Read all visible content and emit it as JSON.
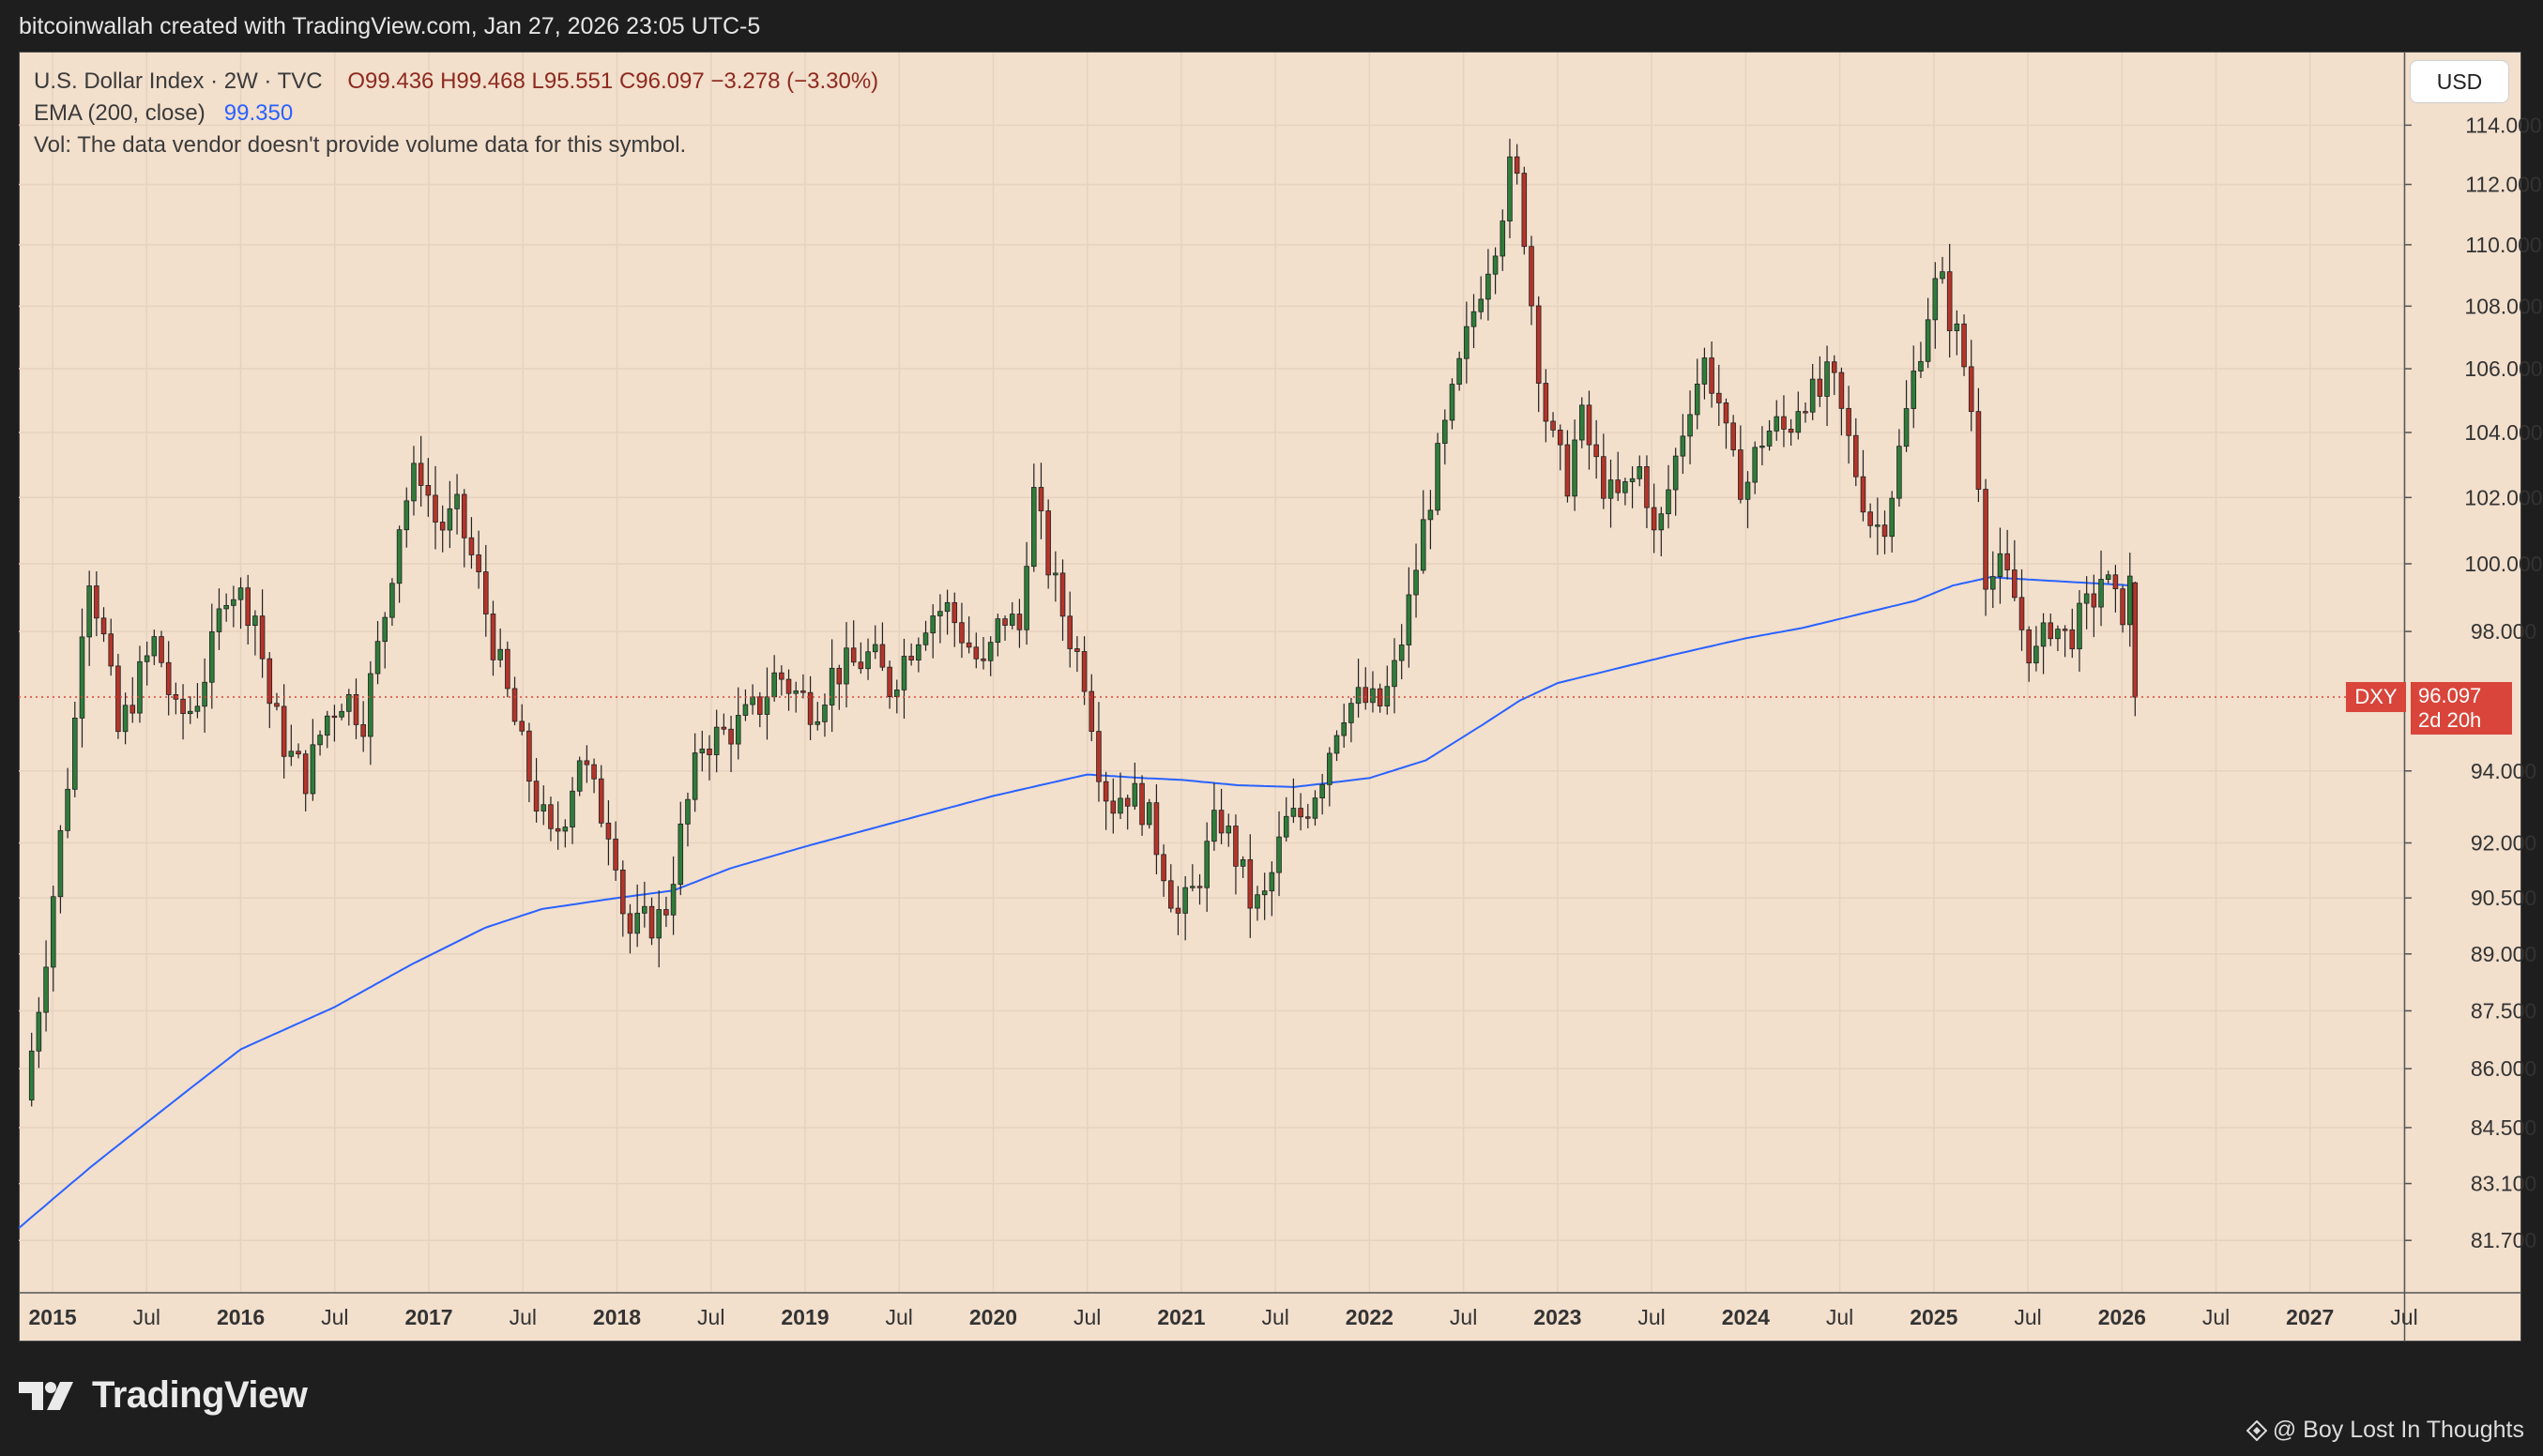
{
  "caption": "bitcoinwallah created with TradingView.com, Jan 27, 2026 23:05 UTC-5",
  "legend": {
    "line1_prefix": "U.S. Dollar Index · 2W · TVC",
    "open": "O99.436",
    "high": "H99.468",
    "low": "L95.551",
    "close": "C96.097",
    "change": "−3.278 (−3.30%)",
    "ema_label": "EMA (200, close)",
    "ema_value": "99.350",
    "volume_note": "Vol: The data vendor doesn't provide volume data for this symbol."
  },
  "currency_button": "USD",
  "last_price": {
    "symbol": "DXY",
    "value": "96.097",
    "countdown": "2d 20h"
  },
  "brand": "TradingView",
  "credit": "@ Boy Lost In Thoughts",
  "colors": {
    "up": "#2e7d3a",
    "down": "#b5342a",
    "ema": "#2962ff",
    "background": "#f2dfcc"
  },
  "chart_data": {
    "type": "candlestick",
    "symbol": "U.S. Dollar Index",
    "interval": "2W",
    "y_scale": "log",
    "ylim": [
      80.5,
      116.5
    ],
    "xlim": [
      2014.82,
      2027.5
    ],
    "y_ticks": [
      "114.000",
      "112.000",
      "110.000",
      "108.000",
      "106.000",
      "104.000",
      "102.000",
      "100.000",
      "98.000",
      "94.000",
      "92.000",
      "90.500",
      "89.000",
      "87.500",
      "86.000",
      "84.500",
      "83.100",
      "81.700"
    ],
    "x_ticks": [
      {
        "label": "2015",
        "t": 2015.0
      },
      {
        "label": "Jul",
        "t": 2015.5
      },
      {
        "label": "2016",
        "t": 2016.0
      },
      {
        "label": "Jul",
        "t": 2016.5
      },
      {
        "label": "2017",
        "t": 2017.0
      },
      {
        "label": "Jul",
        "t": 2017.5
      },
      {
        "label": "2018",
        "t": 2018.0
      },
      {
        "label": "Jul",
        "t": 2018.5
      },
      {
        "label": "2019",
        "t": 2019.0
      },
      {
        "label": "Jul",
        "t": 2019.5
      },
      {
        "label": "2020",
        "t": 2020.0
      },
      {
        "label": "Jul",
        "t": 2020.5
      },
      {
        "label": "2021",
        "t": 2021.0
      },
      {
        "label": "Jul",
        "t": 2021.5
      },
      {
        "label": "2022",
        "t": 2022.0
      },
      {
        "label": "Jul",
        "t": 2022.5
      },
      {
        "label": "2023",
        "t": 2023.0
      },
      {
        "label": "Jul",
        "t": 2023.5
      },
      {
        "label": "2024",
        "t": 2024.0
      },
      {
        "label": "Jul",
        "t": 2024.5
      },
      {
        "label": "2025",
        "t": 2025.0
      },
      {
        "label": "Jul",
        "t": 2025.5
      },
      {
        "label": "2026",
        "t": 2026.0
      },
      {
        "label": "Jul",
        "t": 2026.5
      },
      {
        "label": "2027",
        "t": 2027.0
      },
      {
        "label": "Jul",
        "t": 2027.5
      }
    ],
    "price_path": [
      [
        2014.85,
        85.2
      ],
      [
        2014.95,
        88.5
      ],
      [
        2015.05,
        92.5
      ],
      [
        2015.12,
        95.5
      ],
      [
        2015.18,
        100.2
      ],
      [
        2015.28,
        97.5
      ],
      [
        2015.35,
        95.0
      ],
      [
        2015.45,
        96.5
      ],
      [
        2015.55,
        97.8
      ],
      [
        2015.65,
        95.5
      ],
      [
        2015.75,
        95.8
      ],
      [
        2015.85,
        97.5
      ],
      [
        2015.93,
        99.5
      ],
      [
        2016.0,
        99.0
      ],
      [
        2016.08,
        98.5
      ],
      [
        2016.15,
        96.0
      ],
      [
        2016.25,
        94.5
      ],
      [
        2016.35,
        93.8
      ],
      [
        2016.45,
        95.5
      ],
      [
        2016.55,
        96.2
      ],
      [
        2016.65,
        95.5
      ],
      [
        2016.75,
        98.0
      ],
      [
        2016.85,
        101.5
      ],
      [
        2016.95,
        103.0
      ],
      [
        2017.05,
        101.0
      ],
      [
        2017.15,
        101.5
      ],
      [
        2017.25,
        99.8
      ],
      [
        2017.35,
        97.5
      ],
      [
        2017.45,
        95.5
      ],
      [
        2017.55,
        93.5
      ],
      [
        2017.65,
        92.0
      ],
      [
        2017.72,
        92.8
      ],
      [
        2017.8,
        94.5
      ],
      [
        2017.9,
        93.0
      ],
      [
        2017.98,
        92.3
      ],
      [
        2018.05,
        89.5
      ],
      [
        2018.15,
        89.8
      ],
      [
        2018.25,
        90.0
      ],
      [
        2018.35,
        92.5
      ],
      [
        2018.45,
        94.8
      ],
      [
        2018.55,
        95.0
      ],
      [
        2018.65,
        95.3
      ],
      [
        2018.75,
        95.8
      ],
      [
        2018.85,
        96.8
      ],
      [
        2018.95,
        96.2
      ],
      [
        2019.05,
        95.8
      ],
      [
        2019.15,
        96.8
      ],
      [
        2019.25,
        97.0
      ],
      [
        2019.35,
        97.3
      ],
      [
        2019.45,
        96.4
      ],
      [
        2019.55,
        97.5
      ],
      [
        2019.65,
        98.5
      ],
      [
        2019.75,
        98.7
      ],
      [
        2019.85,
        97.8
      ],
      [
        2019.95,
        96.8
      ],
      [
        2020.05,
        98.5
      ],
      [
        2020.15,
        98.0
      ],
      [
        2020.2,
        102.5
      ],
      [
        2020.3,
        99.8
      ],
      [
        2020.4,
        98.0
      ],
      [
        2020.5,
        96.5
      ],
      [
        2020.55,
        94.5
      ],
      [
        2020.62,
        93.0
      ],
      [
        2020.7,
        93.5
      ],
      [
        2020.8,
        93.0
      ],
      [
        2020.9,
        91.5
      ],
      [
        2020.98,
        90.0
      ],
      [
        2021.05,
        90.5
      ],
      [
        2021.12,
        91.5
      ],
      [
        2021.2,
        92.8
      ],
      [
        2021.3,
        91.5
      ],
      [
        2021.38,
        90.2
      ],
      [
        2021.45,
        90.5
      ],
      [
        2021.55,
        92.5
      ],
      [
        2021.65,
        92.8
      ],
      [
        2021.75,
        94.0
      ],
      [
        2021.85,
        95.8
      ],
      [
        2021.95,
        96.0
      ],
      [
        2022.05,
        95.8
      ],
      [
        2022.12,
        96.5
      ],
      [
        2022.2,
        98.5
      ],
      [
        2022.3,
        101.5
      ],
      [
        2022.4,
        104.0
      ],
      [
        2022.5,
        106.5
      ],
      [
        2022.58,
        108.5
      ],
      [
        2022.68,
        110.5
      ],
      [
        2022.75,
        112.5
      ],
      [
        2022.8,
        111.8
      ],
      [
        2022.88,
        107.0
      ],
      [
        2022.95,
        104.0
      ],
      [
        2023.05,
        102.5
      ],
      [
        2023.12,
        104.5
      ],
      [
        2023.2,
        103.0
      ],
      [
        2023.3,
        101.8
      ],
      [
        2023.38,
        102.3
      ],
      [
        2023.45,
        103.0
      ],
      [
        2023.52,
        100.5
      ],
      [
        2023.6,
        102.5
      ],
      [
        2023.7,
        105.0
      ],
      [
        2023.78,
        106.2
      ],
      [
        2023.85,
        105.2
      ],
      [
        2023.92,
        103.0
      ],
      [
        2024.0,
        102.3
      ],
      [
        2024.08,
        103.8
      ],
      [
        2024.15,
        104.2
      ],
      [
        2024.22,
        104.0
      ],
      [
        2024.3,
        105.3
      ],
      [
        2024.38,
        105.0
      ],
      [
        2024.45,
        105.8
      ],
      [
        2024.52,
        104.3
      ],
      [
        2024.6,
        102.5
      ],
      [
        2024.68,
        101.0
      ],
      [
        2024.75,
        101.5
      ],
      [
        2024.82,
        103.5
      ],
      [
        2024.9,
        106.0
      ],
      [
        2024.97,
        107.9
      ],
      [
        2025.03,
        109.0
      ],
      [
        2025.08,
        107.8
      ],
      [
        2025.15,
        106.5
      ],
      [
        2025.22,
        104.0
      ],
      [
        2025.28,
        99.5
      ],
      [
        2025.35,
        99.8
      ],
      [
        2025.42,
        99.2
      ],
      [
        2025.48,
        97.8
      ],
      [
        2025.55,
        97.2
      ],
      [
        2025.62,
        98.3
      ],
      [
        2025.7,
        97.8
      ],
      [
        2025.78,
        98.3
      ],
      [
        2025.85,
        99.0
      ],
      [
        2025.9,
        99.8
      ],
      [
        2025.95,
        98.8
      ],
      [
        2026.0,
        98.6
      ],
      [
        2026.05,
        99.44
      ],
      [
        2026.07,
        96.1
      ]
    ],
    "ema": {
      "name": "EMA (200, close)",
      "points": [
        [
          2014.82,
          82.0
        ],
        [
          2015.2,
          83.5
        ],
        [
          2015.6,
          85.0
        ],
        [
          2016.0,
          86.5
        ],
        [
          2016.5,
          87.6
        ],
        [
          2016.9,
          88.7
        ],
        [
          2017.3,
          89.7
        ],
        [
          2017.6,
          90.2
        ],
        [
          2018.0,
          90.5
        ],
        [
          2018.3,
          90.7
        ],
        [
          2018.6,
          91.3
        ],
        [
          2019.0,
          91.9
        ],
        [
          2019.5,
          92.6
        ],
        [
          2020.0,
          93.3
        ],
        [
          2020.5,
          93.9
        ],
        [
          2020.8,
          93.8
        ],
        [
          2021.0,
          93.75
        ],
        [
          2021.3,
          93.6
        ],
        [
          2021.6,
          93.55
        ],
        [
          2022.0,
          93.8
        ],
        [
          2022.3,
          94.3
        ],
        [
          2022.6,
          95.3
        ],
        [
          2022.8,
          96.0
        ],
        [
          2023.0,
          96.5
        ],
        [
          2023.3,
          96.9
        ],
        [
          2023.6,
          97.3
        ],
        [
          2024.0,
          97.8
        ],
        [
          2024.3,
          98.1
        ],
        [
          2024.6,
          98.5
        ],
        [
          2024.9,
          98.9
        ],
        [
          2025.1,
          99.35
        ],
        [
          2025.3,
          99.6
        ],
        [
          2025.6,
          99.5
        ],
        [
          2026.07,
          99.35
        ]
      ]
    },
    "last_close": 96.097
  }
}
